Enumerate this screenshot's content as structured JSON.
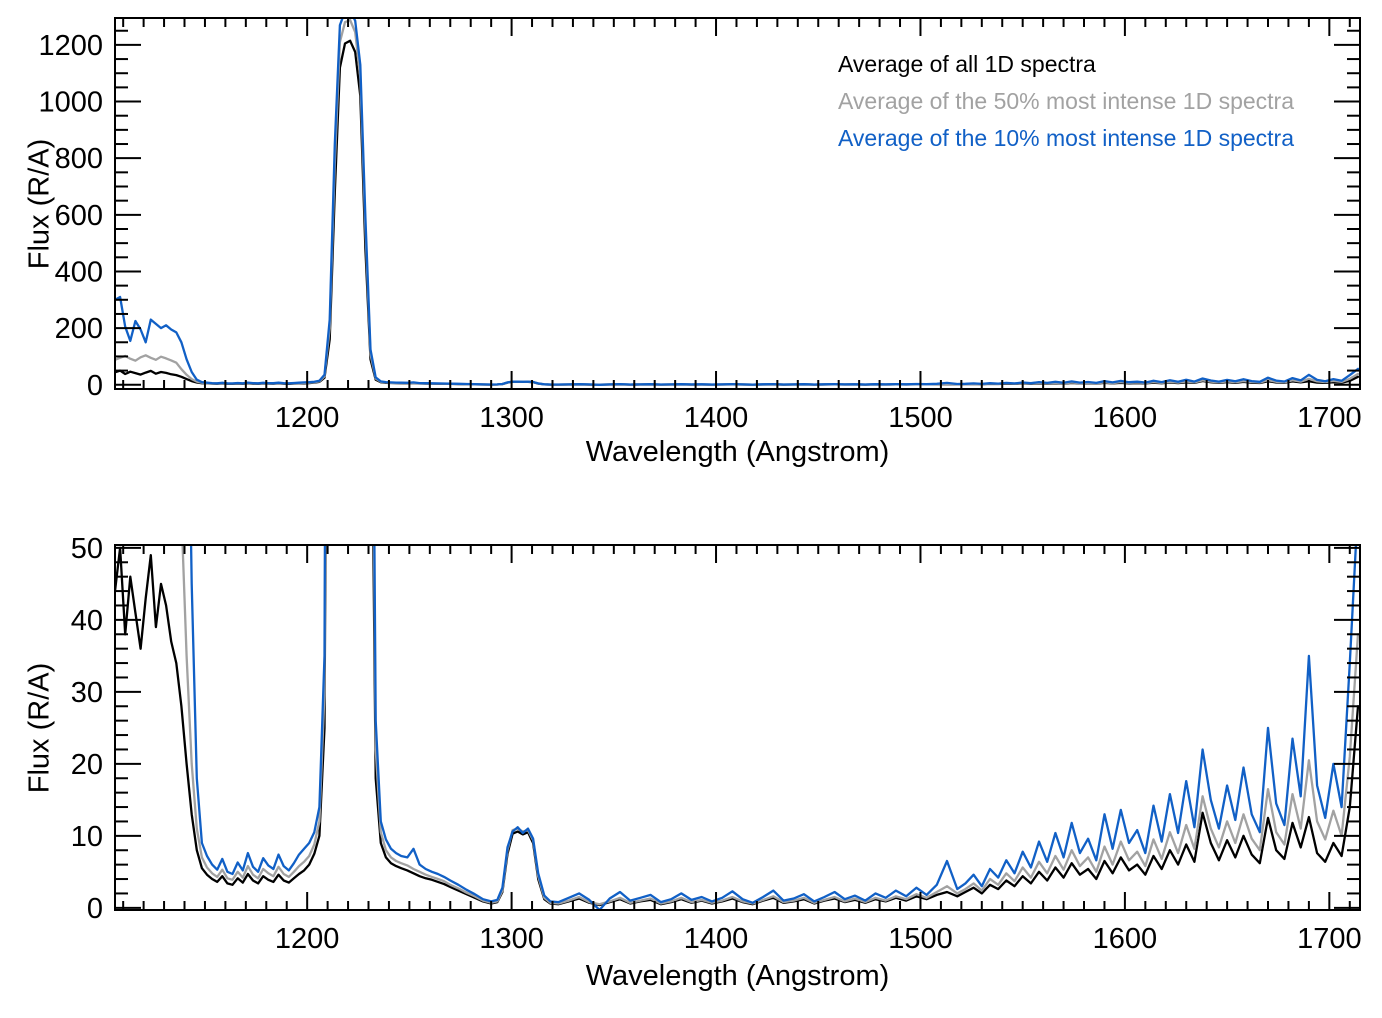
{
  "figure": {
    "background": "#ffffff",
    "axis_color": "#000000"
  },
  "chart_data": {
    "type": "line",
    "title": "",
    "xlabel": "Wavelength (Angstrom)",
    "ylabel": "Flux (R/A)",
    "x_range": [
      1106,
      1715
    ],
    "x_ticks": [
      1200,
      1300,
      1400,
      1500,
      1600,
      1700
    ],
    "x_minor_step": 10,
    "legend_position": "top-right-inside",
    "grid": false,
    "panels": [
      {
        "name": "full-scale",
        "ylim": [
          -15,
          1295
        ],
        "y_ticks": [
          0,
          200,
          400,
          600,
          800,
          1000,
          1200
        ],
        "y_minor_step": 50
      },
      {
        "name": "zoomed",
        "ylim": [
          -0.3,
          50.4
        ],
        "y_ticks": [
          0,
          10,
          20,
          30,
          40,
          50
        ],
        "y_minor_step": 2
      }
    ],
    "x": [
      1106,
      1108.5,
      1111,
      1113.5,
      1116,
      1118.5,
      1121,
      1123.5,
      1126,
      1128.5,
      1131,
      1133.5,
      1136,
      1138.5,
      1141,
      1143.5,
      1146,
      1148.5,
      1151,
      1153.5,
      1156,
      1158.5,
      1161,
      1163.5,
      1166,
      1168.5,
      1171,
      1173.5,
      1176,
      1178.5,
      1181,
      1183.5,
      1186,
      1188.5,
      1191,
      1193.5,
      1196,
      1198.5,
      1201,
      1203.5,
      1206,
      1208.5,
      1211,
      1213.5,
      1216,
      1218.5,
      1221,
      1223.5,
      1226,
      1228.5,
      1231,
      1233.5,
      1236,
      1238.5,
      1241,
      1243.5,
      1246,
      1249,
      1252,
      1255,
      1258,
      1261,
      1264,
      1267,
      1270,
      1274,
      1278,
      1282,
      1286,
      1290,
      1293,
      1295.5,
      1298,
      1300.5,
      1303,
      1305.5,
      1308,
      1310.5,
      1313,
      1316,
      1319,
      1323,
      1328,
      1333,
      1338,
      1343,
      1348,
      1353,
      1358,
      1363,
      1368,
      1373,
      1378,
      1383,
      1388,
      1393,
      1398,
      1403,
      1408,
      1413,
      1418,
      1423,
      1428,
      1433,
      1438,
      1443,
      1448,
      1453,
      1458,
      1463,
      1468,
      1473,
      1478,
      1483,
      1488,
      1493,
      1498,
      1503,
      1508,
      1513,
      1518,
      1522,
      1526,
      1530,
      1534,
      1538,
      1542,
      1546,
      1550,
      1554,
      1558,
      1562,
      1566,
      1570,
      1574,
      1578,
      1582,
      1586,
      1590,
      1594,
      1598,
      1602,
      1606,
      1610,
      1614,
      1618,
      1622,
      1626,
      1630,
      1634,
      1638,
      1642,
      1646,
      1650,
      1654,
      1658,
      1662,
      1666,
      1670,
      1674,
      1678,
      1682,
      1686,
      1690,
      1694,
      1698,
      1702,
      1706,
      1710,
      1714
    ],
    "series": [
      {
        "label": "Average of all 1D spectra",
        "color": "#000000",
        "values": [
          44,
          50,
          38,
          46,
          41,
          36,
          43,
          49,
          39,
          45,
          42,
          37,
          34,
          28,
          20,
          13,
          8,
          5.5,
          4.6,
          4.0,
          3.6,
          4.4,
          3.4,
          3.2,
          4.1,
          3.5,
          4.7,
          3.8,
          3.4,
          4.4,
          3.9,
          3.6,
          4.6,
          3.8,
          3.5,
          4.1,
          4.7,
          5.2,
          6.0,
          7.5,
          10,
          25,
          160,
          680,
          1120,
          1205,
          1215,
          1175,
          1020,
          480,
          90,
          18,
          9,
          7.0,
          6.2,
          5.8,
          5.5,
          5.2,
          4.8,
          4.4,
          4.1,
          3.9,
          3.6,
          3.3,
          2.9,
          2.4,
          1.9,
          1.4,
          0.9,
          0.6,
          0.8,
          2.2,
          7.5,
          10.3,
          10.6,
          10.2,
          10.5,
          9.0,
          4.0,
          1.2,
          0.6,
          0.5,
          0.9,
          1.3,
          0.7,
          0.4,
          0.8,
          1.2,
          0.6,
          0.9,
          1.1,
          0.5,
          0.8,
          1.2,
          0.7,
          1.0,
          0.6,
          0.9,
          1.3,
          0.8,
          0.5,
          1.0,
          1.4,
          0.7,
          0.9,
          1.2,
          0.6,
          1.0,
          1.3,
          0.8,
          1.1,
          0.7,
          1.2,
          0.9,
          1.4,
          1.0,
          1.6,
          1.2,
          1.8,
          2.2,
          1.6,
          2.2,
          2.8,
          2.0,
          3.2,
          2.6,
          3.8,
          3.0,
          4.4,
          3.4,
          5.0,
          3.8,
          5.6,
          4.2,
          6.2,
          4.6,
          5.4,
          4.0,
          6.5,
          4.8,
          7.0,
          5.2,
          6.0,
          4.6,
          7.2,
          5.4,
          8.0,
          6.0,
          8.8,
          6.4,
          13.2,
          9.0,
          6.6,
          9.4,
          7.0,
          10.0,
          7.4,
          6.2,
          12.5,
          8.0,
          6.8,
          11.8,
          8.4,
          12.6,
          7.6,
          6.4,
          9.0,
          7.2,
          14.0,
          28
        ]
      },
      {
        "label": "Average of the 50% most intense 1D spectra",
        "color": "#a2a2a2",
        "values": [
          88,
          95,
          102,
          92,
          85,
          97,
          104,
          95,
          88,
          99,
          93,
          86,
          78,
          55,
          35,
          20,
          11,
          7,
          5.6,
          4.8,
          4.3,
          5.3,
          4.1,
          3.9,
          5.0,
          4.2,
          5.8,
          4.6,
          4.1,
          5.4,
          4.8,
          4.4,
          5.7,
          4.7,
          4.3,
          5.0,
          5.8,
          6.4,
          7.2,
          8.8,
          12,
          30,
          200,
          780,
          1210,
          1280,
          1288,
          1245,
          1085,
          550,
          108,
          22,
          10.5,
          8.0,
          7.0,
          6.5,
          6.2,
          5.9,
          5.4,
          5.0,
          4.6,
          4.3,
          4.0,
          3.7,
          3.2,
          2.7,
          2.1,
          1.6,
          1.0,
          0.7,
          0.9,
          2.4,
          8.0,
          10.8,
          11.0,
          10.6,
          10.8,
          9.4,
          4.4,
          1.4,
          0.7,
          0.6,
          1.0,
          1.5,
          0.8,
          0.5,
          0.9,
          1.4,
          0.7,
          1.0,
          1.3,
          0.6,
          0.9,
          1.4,
          0.8,
          1.1,
          0.7,
          1.0,
          1.5,
          0.9,
          0.6,
          1.1,
          1.6,
          0.8,
          1.0,
          1.4,
          0.7,
          1.1,
          1.5,
          0.9,
          1.3,
          0.8,
          1.4,
          1.0,
          1.6,
          1.2,
          1.9,
          1.4,
          2.2,
          3.0,
          2.0,
          2.6,
          3.4,
          2.4,
          4.0,
          3.2,
          4.8,
          3.7,
          5.6,
          4.2,
          6.4,
          4.8,
          7.2,
          5.3,
          8.0,
          5.8,
          7.0,
          5.0,
          8.5,
          6.0,
          9.2,
          6.6,
          7.8,
          5.8,
          9.5,
          6.8,
          10.5,
          7.6,
          11.5,
          8.2,
          15.5,
          11.0,
          8.4,
          12.0,
          9.0,
          13.0,
          9.6,
          8.0,
          16.5,
          10.5,
          8.8,
          15.8,
          11.0,
          20.5,
          12.0,
          9.5,
          13.5,
          10.0,
          21.0,
          38
        ]
      },
      {
        "label": "Average of the 10% most intense 1D spectra",
        "color": "#1160c6",
        "values": [
          300,
          310,
          205,
          155,
          225,
          195,
          150,
          230,
          215,
          200,
          210,
          195,
          185,
          150,
          90,
          45,
          18,
          9,
          7.2,
          6.0,
          5.3,
          6.8,
          5.0,
          4.7,
          6.3,
          5.2,
          7.6,
          5.7,
          5.0,
          6.9,
          5.9,
          5.4,
          7.4,
          5.8,
          5.2,
          6.2,
          7.4,
          8.2,
          9.0,
          10.5,
          14,
          35,
          230,
          850,
          1270,
          1318,
          1322,
          1285,
          1130,
          590,
          125,
          26,
          12,
          9.5,
          8.2,
          7.6,
          7.2,
          7.0,
          8.2,
          6.0,
          5.4,
          5.0,
          4.7,
          4.3,
          3.8,
          3.2,
          2.5,
          1.9,
          1.2,
          0.9,
          1.1,
          2.8,
          8.4,
          10.6,
          11.2,
          10.4,
          11.0,
          9.6,
          4.8,
          1.7,
          0.9,
          0.8,
          1.4,
          2.0,
          1.1,
          -0.3,
          1.3,
          2.2,
          1.0,
          1.4,
          1.8,
          0.8,
          1.2,
          2.0,
          1.1,
          1.5,
          0.9,
          1.4,
          2.3,
          1.2,
          0.7,
          1.5,
          2.4,
          1.0,
          1.3,
          1.9,
          0.9,
          1.5,
          2.2,
          1.2,
          1.7,
          1.0,
          2.0,
          1.4,
          2.4,
          1.6,
          2.8,
          1.8,
          3.2,
          6.5,
          2.6,
          3.4,
          4.6,
          3.0,
          5.4,
          4.2,
          6.6,
          4.8,
          7.8,
          5.6,
          9.2,
          6.4,
          10.4,
          7.0,
          11.8,
          7.6,
          9.6,
          6.6,
          13.0,
          8.2,
          13.6,
          9.0,
          10.8,
          7.6,
          14.2,
          9.2,
          15.8,
          10.4,
          17.6,
          11.2,
          22.0,
          15.0,
          11.0,
          17.0,
          12.2,
          19.5,
          13.0,
          10.5,
          25.0,
          14.5,
          11.5,
          23.5,
          15.5,
          35.0,
          17.0,
          12.5,
          20.0,
          14.0,
          34.0,
          56
        ]
      }
    ]
  }
}
